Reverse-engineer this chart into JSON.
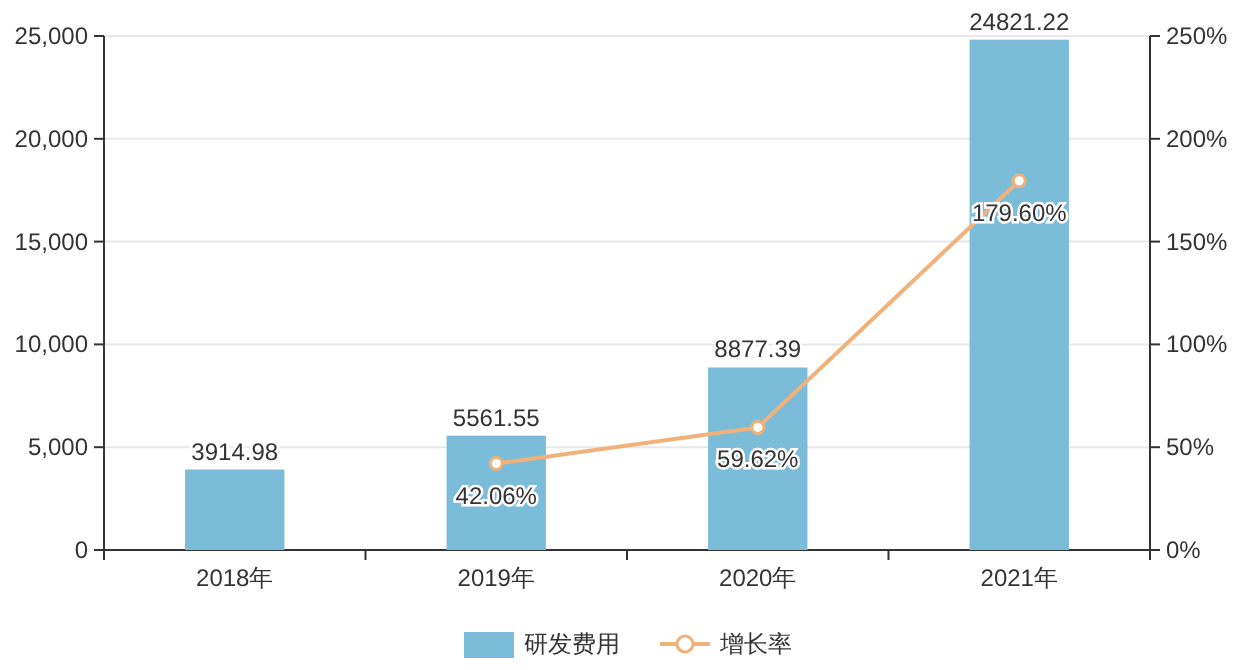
{
  "chart_data": {
    "type": "bar",
    "categories": [
      "2018年",
      "2019年",
      "2020年",
      "2021年"
    ],
    "series": [
      {
        "name": "研发费用",
        "color": "#7bbcd9",
        "values": [
          3914.98,
          5561.55,
          8877.39,
          24821.22
        ],
        "value_labels": [
          "3914.98",
          "5561.55",
          "8877.39",
          "24821.22"
        ]
      },
      {
        "name": "增长率",
        "type": "line",
        "axis": "y2",
        "color": "#f0b27a",
        "marker": "circle",
        "values": [
          null,
          42.06,
          59.62,
          179.6
        ],
        "value_labels": [
          null,
          "42.06%",
          "59.62%",
          "179.60%"
        ]
      }
    ],
    "ylim": [
      0,
      25000
    ],
    "yticks": [
      0,
      {
        "value": 5000,
        "label": "5,000"
      },
      {
        "value": 10000,
        "label": "10,000"
      },
      {
        "value": 15000,
        "label": "15,000"
      },
      {
        "value": 20000,
        "label": "20,000"
      },
      {
        "value": 25000,
        "label": "25,000"
      }
    ],
    "y2lim": [
      0,
      250
    ],
    "y2ticks": [
      {
        "value": 0,
        "label": "0%"
      },
      {
        "value": 50,
        "label": "50%"
      },
      {
        "value": 100,
        "label": "100%"
      },
      {
        "value": 150,
        "label": "150%"
      },
      {
        "value": 200,
        "label": "200%"
      },
      {
        "value": 250,
        "label": "250%"
      }
    ],
    "grid": "y",
    "legend": "bottom"
  }
}
